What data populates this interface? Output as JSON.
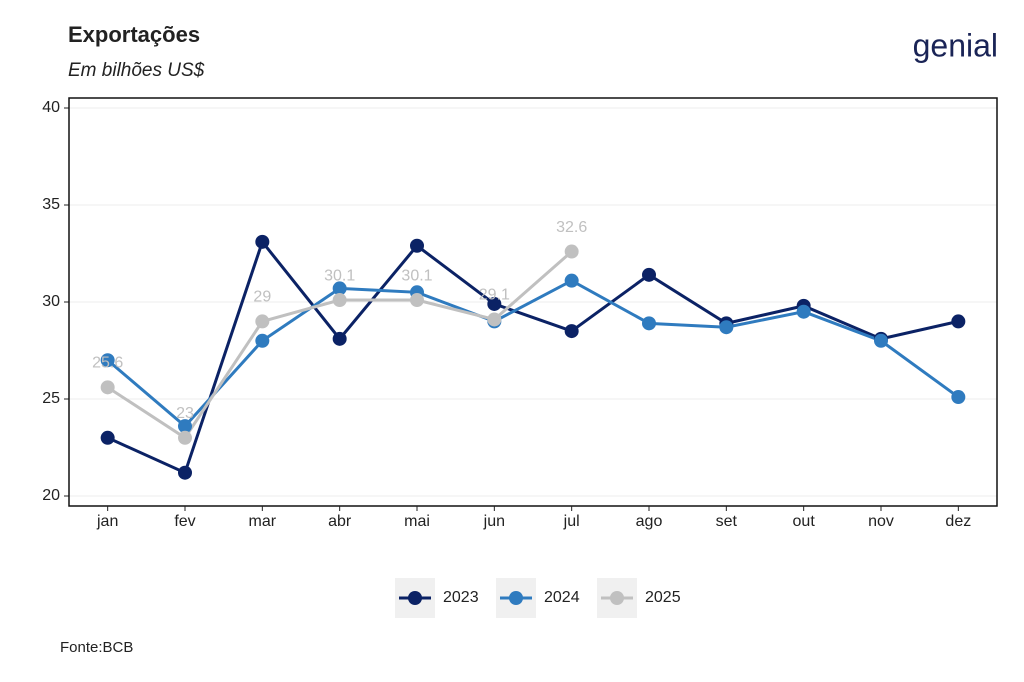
{
  "chart_data": {
    "type": "line",
    "title": "Exportações",
    "subtitle": "Em bilhões US$",
    "source": "Fonte:BCB",
    "logo": "genial",
    "categories": [
      "jan",
      "fev",
      "mar",
      "abr",
      "mai",
      "jun",
      "jul",
      "ago",
      "set",
      "out",
      "nov",
      "dez"
    ],
    "series": [
      {
        "name": "2023",
        "color": "#0b2265",
        "values": [
          23.0,
          21.2,
          33.1,
          28.1,
          32.9,
          29.9,
          28.5,
          31.4,
          28.9,
          29.8,
          28.1,
          29.0
        ]
      },
      {
        "name": "2024",
        "color": "#2f7bbf",
        "values": [
          27.0,
          23.6,
          28.0,
          30.7,
          30.5,
          29.0,
          31.1,
          28.9,
          28.7,
          29.5,
          28.0,
          25.1
        ]
      },
      {
        "name": "2025",
        "color": "#c0c0c0",
        "values": [
          25.6,
          23,
          29,
          30.1,
          30.1,
          29.1,
          32.6,
          null,
          null,
          null,
          null,
          null
        ]
      }
    ],
    "data_labels_series": "2025",
    "ylim": [
      20,
      40
    ],
    "yticks": [
      20,
      25,
      30,
      35,
      40
    ],
    "grid": true,
    "legend": "bottom"
  }
}
